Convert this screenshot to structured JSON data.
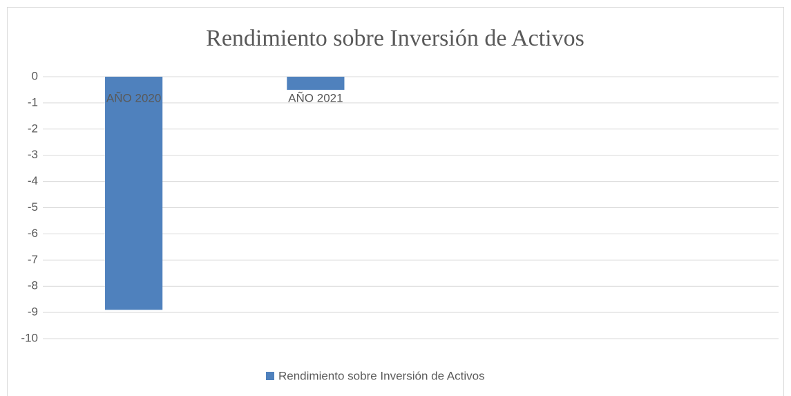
{
  "chart_data": {
    "type": "bar",
    "title": "Rendimiento sobre Inversión de Activos",
    "categories": [
      "AÑO 2020",
      "AÑO 2021",
      null,
      null
    ],
    "series": [
      {
        "name": "Rendimiento sobre Inversión de Activos",
        "color": "#4f81bd",
        "values": [
          -8.9,
          -0.5,
          null,
          null
        ]
      }
    ],
    "ylim": [
      -10,
      0
    ],
    "yticks": [
      0,
      -1,
      -2,
      -3,
      -4,
      -5,
      -6,
      -7,
      -8,
      -9,
      -10
    ],
    "grid": true,
    "legend": "bottom"
  }
}
